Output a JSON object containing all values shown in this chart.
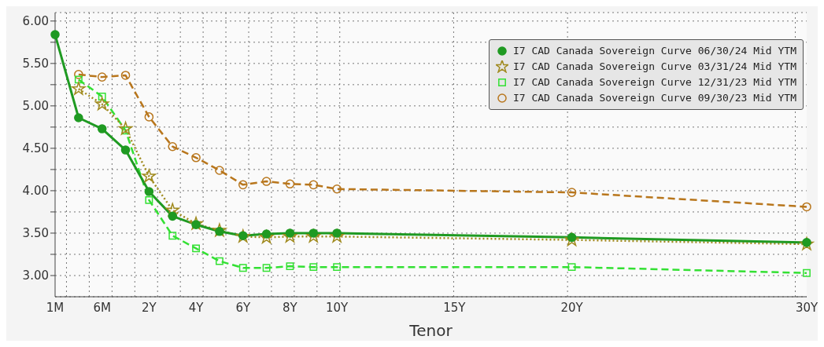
{
  "chart_data": {
    "type": "line",
    "xlabel": "Tenor",
    "categories": [
      "1M",
      null,
      "6M",
      null,
      "2Y",
      null,
      "4Y",
      null,
      "6Y",
      null,
      "8Y",
      null,
      "10Y",
      null,
      null,
      null,
      null,
      "15Y",
      null,
      null,
      null,
      null,
      "20Y",
      null,
      null,
      null,
      null,
      null,
      null,
      null,
      null,
      null,
      "30Y"
    ],
    "ylim": [
      2.75,
      6.1
    ],
    "yticks": [
      {
        "value": 3,
        "label": "3.00"
      },
      {
        "value": 3.25,
        "label": null
      },
      {
        "value": 3.5,
        "label": "3.50"
      },
      {
        "value": 3.75,
        "label": null
      },
      {
        "value": 4,
        "label": "4.00"
      },
      {
        "value": 4.25,
        "label": null
      },
      {
        "value": 4.5,
        "label": "4.50"
      },
      {
        "value": 4.75,
        "label": null
      },
      {
        "value": 5,
        "label": "5.00"
      },
      {
        "value": 5.25,
        "label": null
      },
      {
        "value": 5.5,
        "label": "5.50"
      },
      {
        "value": 5.75,
        "label": null
      },
      {
        "value": 6,
        "label": "6.00"
      }
    ],
    "grid": true,
    "legend": "top right",
    "series": [
      {
        "name": "I7 CAD Canada Sovereign Curve 06/30/24 Mid YTM",
        "color": "#1f9a22",
        "marker": "circle",
        "line_style": "solid",
        "values": [
          5.84,
          4.86,
          4.73,
          4.48,
          3.99,
          3.7,
          3.6,
          3.52,
          3.47,
          3.49,
          3.5,
          3.5,
          3.5,
          null,
          null,
          null,
          null,
          null,
          null,
          null,
          null,
          null,
          3.45,
          null,
          null,
          null,
          null,
          null,
          null,
          null,
          null,
          null,
          3.39
        ]
      },
      {
        "name": "I7 CAD Canada Sovereign Curve 03/31/24 Mid YTM",
        "color": "#a08a1e",
        "marker": "star",
        "line_style": "dotted",
        "values": [
          null,
          5.2,
          5.02,
          4.73,
          4.17,
          3.77,
          3.61,
          3.53,
          3.46,
          3.45,
          3.46,
          3.46,
          3.46,
          null,
          null,
          null,
          null,
          null,
          null,
          null,
          null,
          null,
          3.42,
          null,
          null,
          null,
          null,
          null,
          null,
          null,
          null,
          null,
          3.37
        ]
      },
      {
        "name": "I7 CAD Canada Sovereign Curve 12/31/23 Mid YTM",
        "color": "#33e033",
        "marker": "square",
        "line_style": "dashed",
        "values": [
          null,
          5.31,
          5.11,
          4.71,
          3.89,
          3.47,
          3.32,
          3.17,
          3.09,
          3.09,
          3.11,
          3.1,
          3.1,
          null,
          null,
          null,
          null,
          null,
          null,
          null,
          null,
          null,
          3.1,
          null,
          null,
          null,
          null,
          null,
          null,
          null,
          null,
          null,
          3.03
        ]
      },
      {
        "name": "I7 CAD Canada Sovereign Curve 09/30/23 Mid YTM",
        "color": "#b8761c",
        "marker": "circle",
        "line_style": "dashed",
        "values": [
          null,
          5.37,
          5.34,
          5.36,
          4.87,
          4.52,
          4.39,
          4.24,
          4.07,
          4.11,
          4.08,
          4.07,
          4.02,
          null,
          null,
          null,
          null,
          null,
          null,
          null,
          null,
          null,
          3.98,
          null,
          null,
          null,
          null,
          null,
          null,
          null,
          null,
          null,
          3.81
        ]
      }
    ]
  }
}
